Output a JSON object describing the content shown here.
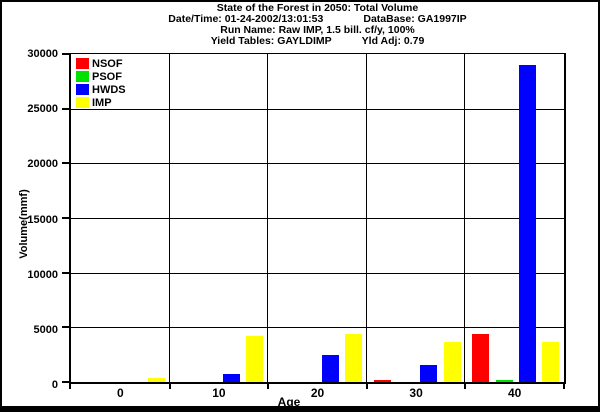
{
  "header": {
    "line1": "State of the Forest in 2050: Total Volume",
    "line2_left": "Date/Time: 01-24-2002/13:01:53",
    "line2_right": "DataBase: GA1997IP",
    "line3": "Run Name: Raw IMP, 1.5 bill. cf/y, 100%",
    "line4_left": "Yield Tables: GAYLDIMP",
    "line4_right": "Yld Adj: 0.79"
  },
  "chart_data": {
    "type": "bar",
    "title": "State of the Forest in 2050: Total Volume",
    "categories": [
      "0",
      "10",
      "20",
      "30",
      "40"
    ],
    "series": [
      {
        "name": "NSOF",
        "color": "#ff0000",
        "values": [
          0,
          0,
          0,
          150,
          4350
        ]
      },
      {
        "name": "PSOF",
        "color": "#00e100",
        "values": [
          0,
          0,
          0,
          0,
          150
        ]
      },
      {
        "name": "HWDS",
        "color": "#0000ff",
        "values": [
          0,
          750,
          2450,
          1550,
          29000
        ]
      },
      {
        "name": "IMP",
        "color": "#ffff00",
        "values": [
          400,
          4200,
          4400,
          3700,
          3650
        ]
      }
    ],
    "xlabel": "Age",
    "ylabel": "Volume(mmf)",
    "ylim": [
      0,
      30000
    ],
    "ytick_step": 5000,
    "grid": true,
    "legend_position": "top-left",
    "axis_color": "#000000",
    "background_color": "#ffffff"
  }
}
